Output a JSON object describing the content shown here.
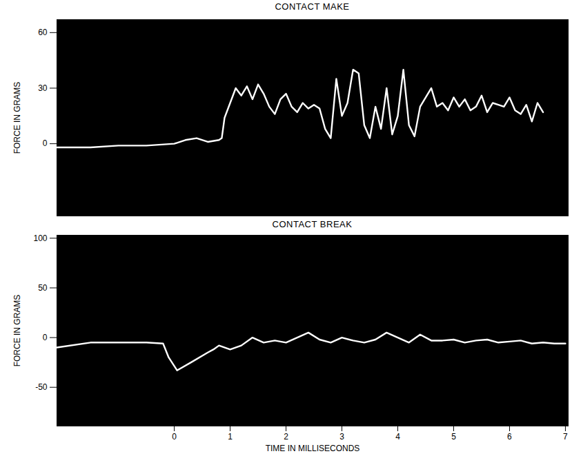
{
  "chart_data": [
    {
      "type": "line",
      "title": "CONTACT MAKE",
      "y_label": "FORCE IN GRAMS",
      "color": "#ffffff",
      "tick_labels": "y",
      "x": [
        -2.1,
        -1.5,
        -1.0,
        -0.5,
        0,
        0.2,
        0.4,
        0.6,
        0.8,
        0.85,
        0.9,
        1.0,
        1.1,
        1.2,
        1.3,
        1.4,
        1.5,
        1.6,
        1.7,
        1.8,
        1.9,
        2.0,
        2.1,
        2.2,
        2.3,
        2.4,
        2.5,
        2.6,
        2.7,
        2.8,
        2.9,
        3.0,
        3.1,
        3.2,
        3.3,
        3.4,
        3.5,
        3.6,
        3.7,
        3.8,
        3.9,
        4.0,
        4.1,
        4.2,
        4.3,
        4.4,
        4.5,
        4.6,
        4.7,
        4.8,
        4.9,
        5.0,
        5.1,
        5.2,
        5.3,
        5.4,
        5.5,
        5.6,
        5.7,
        5.8,
        5.9,
        6.0,
        6.1,
        6.2,
        6.3,
        6.4,
        6.5,
        6.6
      ],
      "values": [
        -2,
        -2,
        -1,
        -1,
        0,
        2,
        3,
        1,
        2,
        3,
        14,
        22,
        30,
        26,
        31,
        24,
        32,
        27,
        20,
        16,
        24,
        27,
        20,
        17,
        22,
        19,
        21,
        19,
        8,
        3,
        35,
        15,
        22,
        40,
        38,
        10,
        3,
        20,
        8,
        30,
        5,
        15,
        40,
        10,
        4,
        20,
        25,
        30,
        20,
        22,
        18,
        25,
        20,
        24,
        18,
        20,
        26,
        17,
        22,
        21,
        20,
        25,
        18,
        16,
        21,
        12,
        22,
        17
      ],
      "xlim": [
        -2.1,
        7.05
      ],
      "ylim": [
        -39,
        67
      ],
      "yticks": [
        0,
        30,
        60
      ]
    },
    {
      "type": "line",
      "title": "CONTACT BREAK",
      "y_label": "FORCE IN GRAMS",
      "x_label": "TIME IN MILLISECONDS",
      "color": "#ffffff",
      "x": [
        -2.1,
        -1.5,
        -1.0,
        -0.5,
        -0.2,
        -0.1,
        0.05,
        0.3,
        0.6,
        0.7,
        0.8,
        1.0,
        1.2,
        1.4,
        1.6,
        1.8,
        2.0,
        2.2,
        2.4,
        2.6,
        2.8,
        3.0,
        3.2,
        3.4,
        3.6,
        3.8,
        4.0,
        4.2,
        4.4,
        4.6,
        4.8,
        5.0,
        5.2,
        5.4,
        5.6,
        5.8,
        6.0,
        6.2,
        6.4,
        6.6,
        6.8,
        7.0
      ],
      "values": [
        -10,
        -5,
        -5,
        -5,
        -6,
        -20,
        -33,
        -25,
        -15,
        -12,
        -8,
        -12,
        -8,
        0,
        -5,
        -3,
        -5,
        0,
        5,
        -2,
        -5,
        0,
        -3,
        -5,
        -2,
        5,
        0,
        -5,
        3,
        -3,
        -3,
        -2,
        -5,
        -3,
        -2,
        -5,
        -4,
        -3,
        -6,
        -5,
        -6,
        -6
      ],
      "xlim": [
        -2.1,
        7.05
      ],
      "ylim": [
        -89,
        103
      ],
      "yticks": [
        -50,
        0,
        50,
        100
      ],
      "xticks": [
        0,
        1,
        2,
        3,
        4,
        5,
        6,
        7
      ]
    }
  ]
}
